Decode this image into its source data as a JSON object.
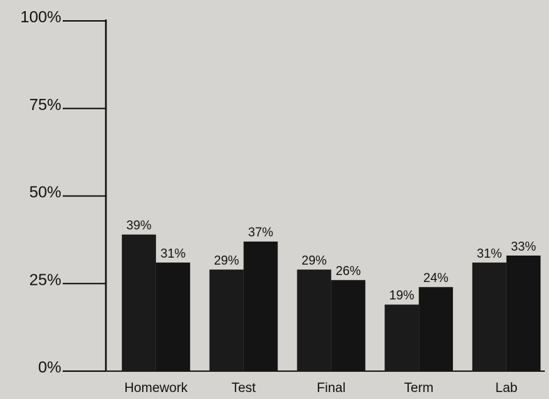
{
  "chart_data": {
    "type": "bar",
    "categories": [
      "Homework",
      "Test",
      "Final",
      "Term",
      "Lab"
    ],
    "series": [
      {
        "color": "#1b1b1b",
        "values": [
          39,
          29,
          29,
          19,
          31
        ],
        "value_labels": [
          "39%",
          "29%",
          "29%",
          "19%",
          "31%"
        ]
      },
      {
        "color": "#141414",
        "values": [
          31,
          37,
          26,
          24,
          33
        ],
        "value_labels": [
          "31%",
          "37%",
          "26%",
          "24%",
          "33%"
        ]
      }
    ],
    "ylim": [
      0,
      100
    ],
    "yticks": [
      {
        "value": 0,
        "label": "0%"
      },
      {
        "value": 25,
        "label": "25%"
      },
      {
        "value": 50,
        "label": "50%"
      },
      {
        "value": 75,
        "label": "75%"
      },
      {
        "value": 100,
        "label": "100%"
      }
    ]
  }
}
